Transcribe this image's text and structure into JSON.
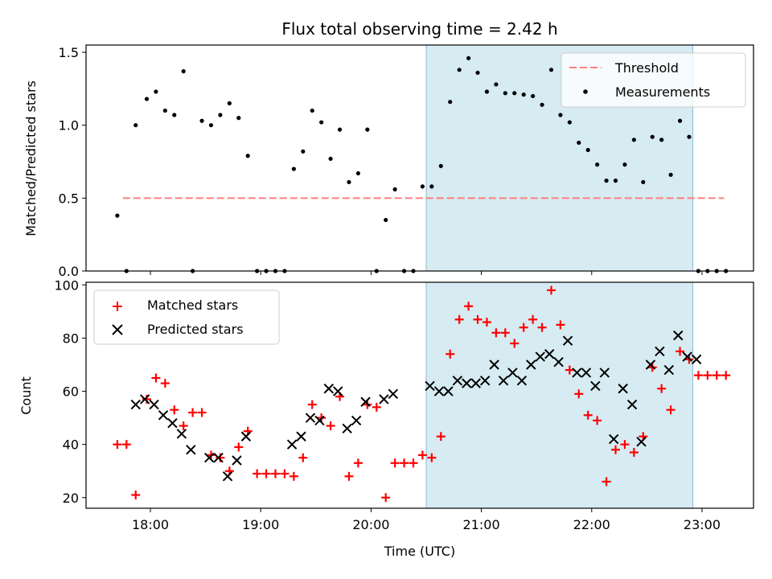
{
  "chart_data": [
    {
      "type": "scatter",
      "title": "Flux total observing time = 2.42 h",
      "xlabel": "",
      "ylabel": "Matched/Predicted stars",
      "xlim": [
        "17:25",
        "23:28"
      ],
      "ylim": [
        0,
        1.55
      ],
      "yticks": [
        "0.0",
        "0.5",
        "1.0",
        "1.5"
      ],
      "shaded_interval": [
        "20:30",
        "22:55"
      ],
      "legend_position": "top-right",
      "threshold": {
        "name": "Threshold",
        "value": 0.5,
        "x_start": "17:45",
        "x_end": "23:12",
        "color": "#ff7f7f"
      },
      "series": [
        {
          "name": "Measurements",
          "marker": "dot",
          "color": "#000000",
          "x": [
            "17:42",
            "17:47",
            "17:52",
            "17:58",
            "18:03",
            "18:08",
            "18:13",
            "18:18",
            "18:23",
            "18:28",
            "18:33",
            "18:38",
            "18:43",
            "18:48",
            "18:53",
            "18:58",
            "19:03",
            "19:08",
            "19:13",
            "19:18",
            "19:23",
            "19:28",
            "19:33",
            "19:38",
            "19:43",
            "19:48",
            "19:53",
            "19:58",
            "20:03",
            "20:08",
            "20:13",
            "20:18",
            "20:23",
            "20:28",
            "20:33",
            "20:38",
            "20:43",
            "20:48",
            "20:53",
            "20:58",
            "21:03",
            "21:08",
            "21:13",
            "21:18",
            "21:23",
            "21:28",
            "21:33",
            "21:38",
            "21:43",
            "21:48",
            "21:53",
            "21:58",
            "22:03",
            "22:08",
            "22:13",
            "22:18",
            "22:23",
            "22:28",
            "22:33",
            "22:38",
            "22:43",
            "22:48",
            "22:53",
            "22:58",
            "23:03",
            "23:08",
            "23:13"
          ],
          "y": [
            0.38,
            0.0,
            1.0,
            1.18,
            1.23,
            1.1,
            1.07,
            1.37,
            0.0,
            1.03,
            1.0,
            1.07,
            1.15,
            1.05,
            0.79,
            0.0,
            0.0,
            0.0,
            0.0,
            0.7,
            0.82,
            1.1,
            1.02,
            0.77,
            0.97,
            0.61,
            0.67,
            0.97,
            0.0,
            0.35,
            0.56,
            0.0,
            0.0,
            0.58,
            0.58,
            0.72,
            1.16,
            1.38,
            1.46,
            1.36,
            1.23,
            1.28,
            1.22,
            1.22,
            1.21,
            1.2,
            1.14,
            1.38,
            1.07,
            1.02,
            0.88,
            0.83,
            0.73,
            0.62,
            0.62,
            0.73,
            0.9,
            0.61,
            0.92,
            0.9,
            0.66,
            1.03,
            0.92,
            0.0,
            0.0,
            0.0,
            0.0
          ]
        }
      ]
    },
    {
      "type": "scatter",
      "title": "",
      "xlabel": "Time (UTC)",
      "ylabel": "Count",
      "xlim": [
        "17:25",
        "23:28"
      ],
      "ylim": [
        16,
        101
      ],
      "yticks": [
        "20",
        "40",
        "60",
        "80",
        "100"
      ],
      "xticks": [
        "18:00",
        "19:00",
        "20:00",
        "21:00",
        "22:00",
        "23:00"
      ],
      "shaded_interval": [
        "20:30",
        "22:55"
      ],
      "legend_position": "top-left",
      "series": [
        {
          "name": "Matched stars",
          "marker": "plus",
          "color": "#ff0000",
          "x": [
            "17:42",
            "17:47",
            "17:52",
            "17:58",
            "18:03",
            "18:08",
            "18:13",
            "18:18",
            "18:23",
            "18:28",
            "18:33",
            "18:38",
            "18:43",
            "18:48",
            "18:53",
            "18:58",
            "19:03",
            "19:08",
            "19:13",
            "19:18",
            "19:23",
            "19:28",
            "19:33",
            "19:38",
            "19:43",
            "19:48",
            "19:53",
            "19:58",
            "20:03",
            "20:08",
            "20:13",
            "20:18",
            "20:23",
            "20:28",
            "20:33",
            "20:38",
            "20:43",
            "20:48",
            "20:53",
            "20:58",
            "21:03",
            "21:08",
            "21:13",
            "21:18",
            "21:23",
            "21:28",
            "21:33",
            "21:38",
            "21:43",
            "21:48",
            "21:53",
            "21:58",
            "22:03",
            "22:08",
            "22:13",
            "22:18",
            "22:23",
            "22:28",
            "22:33",
            "22:38",
            "22:43",
            "22:48",
            "22:53",
            "22:58",
            "23:03",
            "23:08",
            "23:13"
          ],
          "y": [
            40,
            40,
            21,
            57,
            65,
            63,
            53,
            47,
            52,
            52,
            36,
            35,
            30,
            39,
            45,
            29,
            29,
            29,
            29,
            28,
            35,
            55,
            50,
            47,
            58,
            28,
            33,
            55,
            54,
            20,
            33,
            33,
            33,
            36,
            35,
            43,
            74,
            87,
            92,
            87,
            86,
            82,
            82,
            78,
            84,
            87,
            84,
            98,
            85,
            68,
            59,
            51,
            49,
            26,
            38,
            40,
            37,
            43,
            69,
            61,
            53,
            75,
            72,
            66,
            66,
            66,
            66
          ]
        },
        {
          "name": "Predicted stars",
          "marker": "x",
          "color": "#000000",
          "x": [
            "17:52",
            "17:57",
            "18:02",
            "18:07",
            "18:12",
            "18:17",
            "18:22",
            "18:32",
            "18:37",
            "18:42",
            "18:47",
            "18:52",
            "19:17",
            "19:22",
            "19:27",
            "19:32",
            "19:37",
            "19:42",
            "19:47",
            "19:52",
            "19:57",
            "20:07",
            "20:12",
            "20:32",
            "20:37",
            "20:42",
            "20:47",
            "20:52",
            "20:57",
            "21:02",
            "21:07",
            "21:12",
            "21:17",
            "21:22",
            "21:27",
            "21:32",
            "21:37",
            "21:42",
            "21:47",
            "21:52",
            "21:57",
            "22:02",
            "22:07",
            "22:12",
            "22:17",
            "22:22",
            "22:27",
            "22:32",
            "22:37",
            "22:42",
            "22:47",
            "22:52",
            "22:57"
          ],
          "y": [
            55,
            57,
            55,
            51,
            48,
            44,
            38,
            35,
            35,
            28,
            34,
            43,
            40,
            43,
            50,
            49,
            61,
            60,
            46,
            49,
            56,
            57,
            59,
            62,
            60,
            60,
            64,
            63,
            63,
            64,
            70,
            64,
            67,
            64,
            70,
            73,
            74,
            71,
            79,
            67,
            67,
            62,
            67,
            42,
            61,
            55,
            41,
            70,
            75,
            68,
            81,
            73,
            72
          ]
        }
      ]
    }
  ]
}
